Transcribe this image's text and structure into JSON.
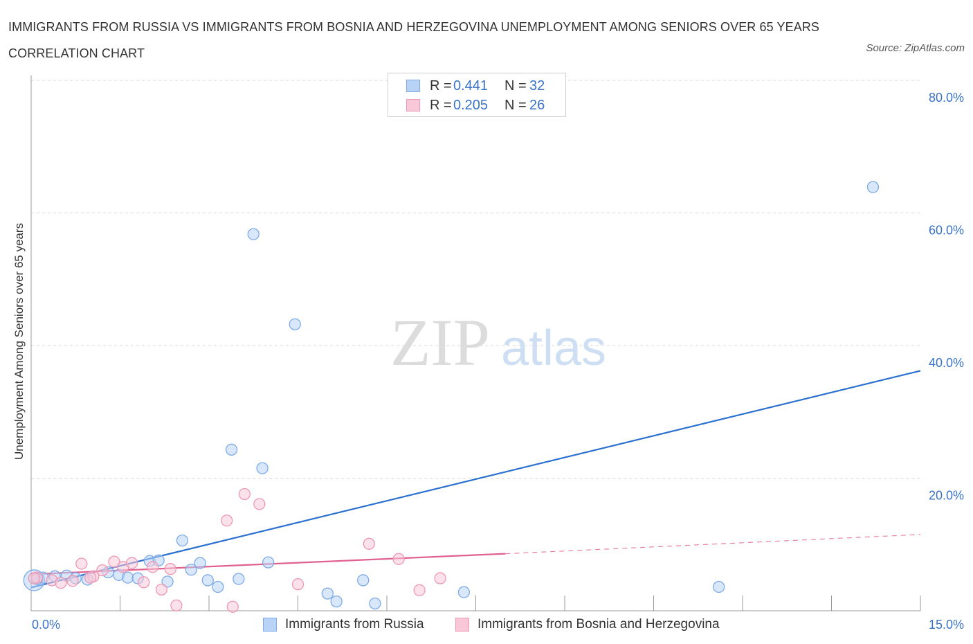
{
  "title": "IMMIGRANTS FROM RUSSIA VS IMMIGRANTS FROM BOSNIA AND HERZEGOVINA UNEMPLOYMENT AMONG SENIORS OVER 65 YEARS CORRELATION CHART",
  "source": "Source: ZipAtlas.com",
  "watermark": {
    "zip": "ZIP",
    "atlas": "atlas"
  },
  "legend": {
    "r_label": "R =",
    "n_label": "N =",
    "russia": {
      "r": "0.441",
      "n": "32"
    },
    "bosnia": {
      "r": "0.205",
      "n": "26"
    }
  },
  "colors": {
    "russia_fill": "#b8d3f5",
    "russia_stroke": "#7eaae6",
    "russia_line": "#2a70d0",
    "bosnia_fill": "#f8c8d8",
    "bosnia_stroke": "#ee98b4",
    "bosnia_line": "#e0608f",
    "tick_label": "#3a72c8",
    "grid": "#d8d8d8"
  },
  "chart_data": {
    "type": "scatter",
    "title": "IMMIGRANTS FROM RUSSIA VS IMMIGRANTS FROM BOSNIA AND HERZEGOVINA UNEMPLOYMENT AMONG SENIORS OVER 65 YEARS CORRELATION CHART",
    "xlabel": "",
    "ylabel": "Unemployment Among Seniors over 65 years",
    "xlim": [
      0,
      15
    ],
    "ylim": [
      0,
      80
    ],
    "x_ticks": [
      {
        "value": 0,
        "label": "0.0%"
      },
      {
        "value": 15,
        "label": "15.0%"
      }
    ],
    "y_ticks": [
      {
        "value": 20,
        "label": "20.0%"
      },
      {
        "value": 40,
        "label": "40.0%"
      },
      {
        "value": 60,
        "label": "60.0%"
      },
      {
        "value": 80,
        "label": "80.0%"
      }
    ],
    "legend_position": "top-center",
    "series": [
      {
        "name": "Immigrants from Russia",
        "color": "#7eaae6",
        "points": [
          {
            "x": 0.05,
            "y": 4.6
          },
          {
            "x": 0.2,
            "y": 5.0
          },
          {
            "x": 0.4,
            "y": 5.2
          },
          {
            "x": 0.6,
            "y": 5.3
          },
          {
            "x": 0.75,
            "y": 4.9
          },
          {
            "x": 0.95,
            "y": 4.7
          },
          {
            "x": 1.3,
            "y": 5.8
          },
          {
            "x": 1.48,
            "y": 5.4
          },
          {
            "x": 1.63,
            "y": 5.0
          },
          {
            "x": 1.8,
            "y": 4.9
          },
          {
            "x": 2.0,
            "y": 7.5
          },
          {
            "x": 2.15,
            "y": 7.6
          },
          {
            "x": 2.3,
            "y": 4.4
          },
          {
            "x": 2.55,
            "y": 10.6
          },
          {
            "x": 2.7,
            "y": 6.2
          },
          {
            "x": 2.85,
            "y": 7.2
          },
          {
            "x": 2.98,
            "y": 4.6
          },
          {
            "x": 3.15,
            "y": 3.6
          },
          {
            "x": 3.38,
            "y": 24.3
          },
          {
            "x": 3.5,
            "y": 4.8
          },
          {
            "x": 3.75,
            "y": 56.8
          },
          {
            "x": 3.9,
            "y": 21.5
          },
          {
            "x": 4.0,
            "y": 7.3
          },
          {
            "x": 4.45,
            "y": 43.2
          },
          {
            "x": 5.0,
            "y": 2.6
          },
          {
            "x": 5.15,
            "y": 1.4
          },
          {
            "x": 5.6,
            "y": 4.6
          },
          {
            "x": 5.8,
            "y": 1.1
          },
          {
            "x": 7.3,
            "y": 2.8
          },
          {
            "x": 11.6,
            "y": 3.6
          },
          {
            "x": 14.2,
            "y": 63.9
          },
          {
            "x": 0.1,
            "y": 4.8
          }
        ],
        "trend": {
          "x": [
            0,
            15
          ],
          "y": [
            3.5,
            36.2
          ],
          "style": "solid"
        }
      },
      {
        "name": "Immigrants from Bosnia and Herzegovina",
        "color": "#ee98b4",
        "points": [
          {
            "x": 0.1,
            "y": 5.0
          },
          {
            "x": 0.35,
            "y": 4.6
          },
          {
            "x": 0.5,
            "y": 4.2
          },
          {
            "x": 0.7,
            "y": 4.5
          },
          {
            "x": 0.85,
            "y": 7.1
          },
          {
            "x": 1.05,
            "y": 5.2
          },
          {
            "x": 1.2,
            "y": 6.1
          },
          {
            "x": 1.4,
            "y": 7.4
          },
          {
            "x": 1.55,
            "y": 6.6
          },
          {
            "x": 1.7,
            "y": 7.2
          },
          {
            "x": 1.9,
            "y": 4.3
          },
          {
            "x": 2.05,
            "y": 6.6
          },
          {
            "x": 2.2,
            "y": 3.2
          },
          {
            "x": 2.35,
            "y": 6.3
          },
          {
            "x": 2.45,
            "y": 0.8
          },
          {
            "x": 3.3,
            "y": 13.6
          },
          {
            "x": 3.4,
            "y": 0.6
          },
          {
            "x": 3.6,
            "y": 17.6
          },
          {
            "x": 3.85,
            "y": 16.1
          },
          {
            "x": 4.5,
            "y": 4.0
          },
          {
            "x": 5.7,
            "y": 10.1
          },
          {
            "x": 6.2,
            "y": 7.8
          },
          {
            "x": 6.55,
            "y": 3.1
          },
          {
            "x": 6.9,
            "y": 4.9
          },
          {
            "x": 0.05,
            "y": 4.9
          },
          {
            "x": 1.0,
            "y": 5.0
          }
        ],
        "trend": {
          "x": [
            0,
            8.0
          ],
          "y": [
            5.5,
            8.6
          ],
          "style": "solid",
          "extension": {
            "x": [
              8.0,
              15
            ],
            "y": [
              8.6,
              11.5
            ],
            "style": "dashed"
          }
        }
      }
    ]
  }
}
